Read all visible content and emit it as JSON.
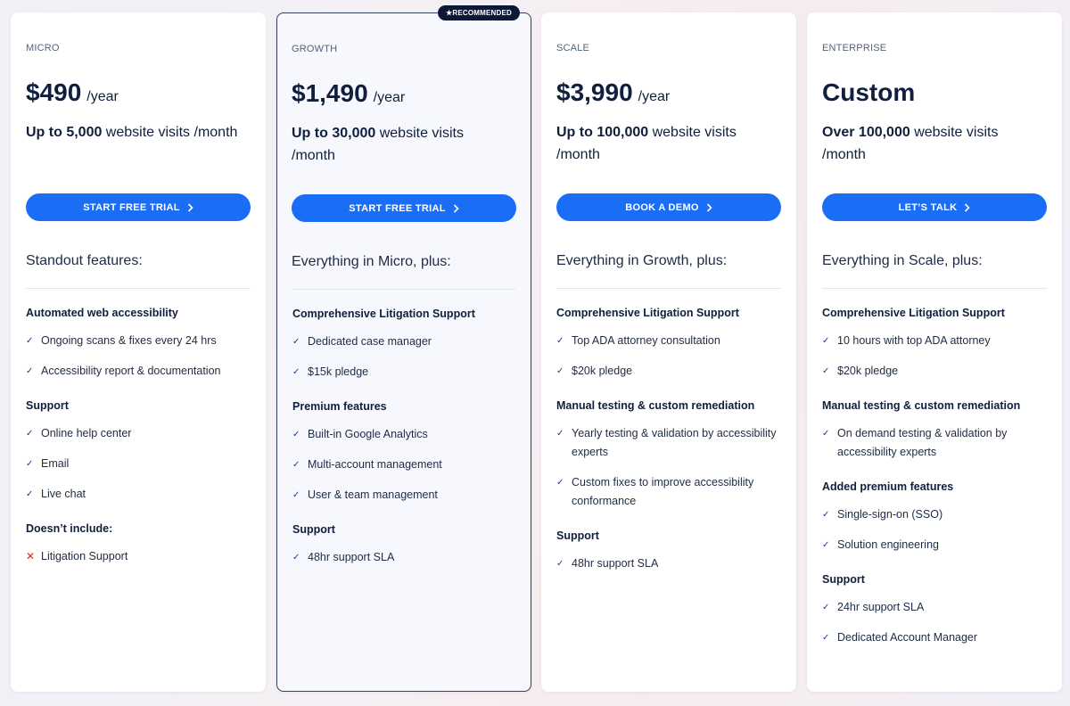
{
  "badge": "★RECOMMENDED",
  "colors": {
    "accent": "#1a6ef5",
    "check": "#1b3a8c",
    "cross": "#e02424",
    "badge": "#0d1736"
  },
  "cards": [
    {
      "tier": "MICRO",
      "price": "$490",
      "period": "/year",
      "visits_bold": "Up to 5,000",
      "visits_rest": " website visits /month",
      "cta": "START FREE TRIAL",
      "features_heading": "Standout features:",
      "groups": [
        {
          "heading": "Automated web accessibility",
          "items": [
            {
              "text": "Ongoing scans & fixes every 24 hrs",
              "icon": "check"
            },
            {
              "text": "Accessibility report & documentation",
              "icon": "check"
            }
          ]
        },
        {
          "heading": "Support",
          "items": [
            {
              "text": "Online help center",
              "icon": "check"
            },
            {
              "text": "Email",
              "icon": "check"
            },
            {
              "text": "Live chat",
              "icon": "check"
            }
          ]
        },
        {
          "heading": "Doesn’t include:",
          "items": [
            {
              "text": "Litigation Support",
              "icon": "cross"
            }
          ]
        }
      ]
    },
    {
      "tier": "GROWTH",
      "recommended": true,
      "price": "$1,490",
      "period": "/year",
      "visits_bold": "Up to 30,000",
      "visits_rest": " website visits /month",
      "cta": "START FREE TRIAL",
      "features_heading": "Everything in Micro, plus:",
      "groups": [
        {
          "heading": "Comprehensive Litigation Support",
          "items": [
            {
              "text": "Dedicated case manager",
              "icon": "check"
            },
            {
              "text": "$15k pledge",
              "icon": "check"
            }
          ]
        },
        {
          "heading": "Premium features",
          "items": [
            {
              "text": "Built-in Google Analytics",
              "icon": "check"
            },
            {
              "text": "Multi-account management",
              "icon": "check"
            },
            {
              "text": "User & team management",
              "icon": "check"
            }
          ]
        },
        {
          "heading": "Support",
          "items": [
            {
              "text": "48hr support SLA",
              "icon": "check"
            }
          ]
        }
      ]
    },
    {
      "tier": "SCALE",
      "price": "$3,990",
      "period": "/year",
      "visits_bold": "Up to 100,000",
      "visits_rest": " website visits /month",
      "cta": "BOOK A DEMO",
      "features_heading": "Everything in Growth, plus:",
      "groups": [
        {
          "heading": "Comprehensive Litigation Support",
          "items": [
            {
              "text": "Top ADA attorney consultation",
              "icon": "check"
            },
            {
              "text": "$20k pledge",
              "icon": "check"
            }
          ]
        },
        {
          "heading": "Manual testing & custom remediation",
          "items": [
            {
              "text": "Yearly testing & validation by accessibility experts",
              "icon": "check"
            },
            {
              "text": "Custom fixes to improve accessibility conformance",
              "icon": "check"
            }
          ]
        },
        {
          "heading": "Support",
          "items": [
            {
              "text": "48hr support SLA",
              "icon": "check"
            }
          ]
        }
      ]
    },
    {
      "tier": "ENTERPRISE",
      "price": "Custom",
      "period": "",
      "visits_bold": "Over 100,000",
      "visits_rest": " website visits /month",
      "cta": "LET’S TALK",
      "features_heading": "Everything in Scale, plus:",
      "groups": [
        {
          "heading": "Comprehensive Litigation Support",
          "items": [
            {
              "text": "10 hours with top ADA attorney",
              "icon": "check"
            },
            {
              "text": "$20k pledge",
              "icon": "check"
            }
          ]
        },
        {
          "heading": "Manual testing & custom remediation",
          "items": [
            {
              "text": "On demand testing & validation by accessibility experts",
              "icon": "check"
            }
          ]
        },
        {
          "heading": "Added premium features",
          "items": [
            {
              "text": "Single-sign-on (SSO)",
              "icon": "check"
            },
            {
              "text": "Solution engineering",
              "icon": "check"
            }
          ]
        },
        {
          "heading": "Support",
          "items": [
            {
              "text": "24hr support SLA",
              "icon": "check"
            },
            {
              "text": "Dedicated Account Manager",
              "icon": "check"
            }
          ]
        }
      ]
    }
  ]
}
